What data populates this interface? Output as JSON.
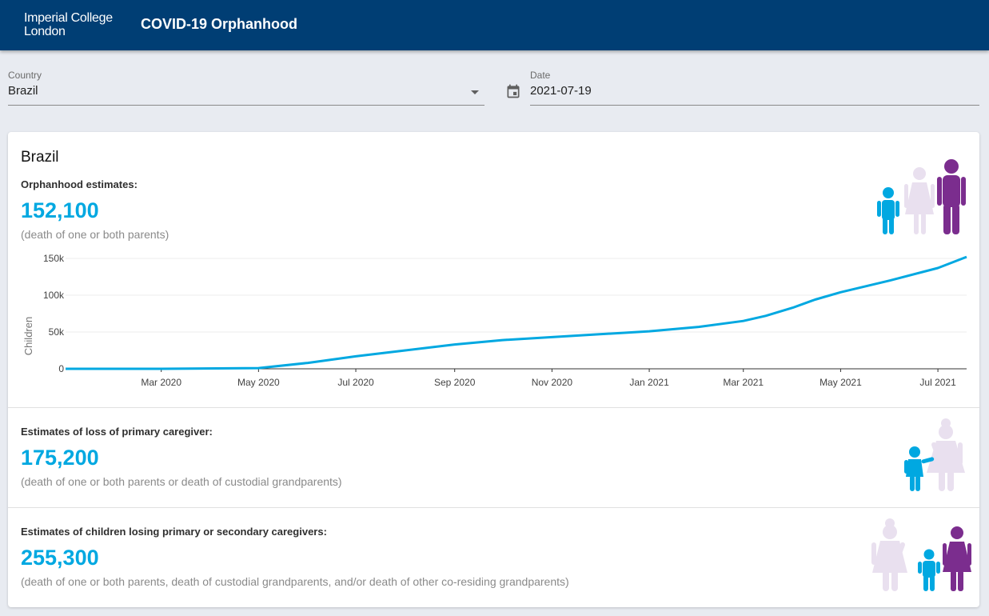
{
  "header": {
    "logo_line1": "Imperial College",
    "logo_line2": "London",
    "title": "COVID-19 Orphanhood"
  },
  "filters": {
    "country_label": "Country",
    "country_value": "Brazil",
    "date_label": "Date",
    "date_value": "2021-07-19"
  },
  "card": {
    "title": "Brazil",
    "orphanhood": {
      "label": "Orphanhood estimates:",
      "value": "152,100",
      "note": "(death of one or both parents)"
    },
    "primary": {
      "label": "Estimates of loss of primary caregiver:",
      "value": "175,200",
      "note": "(death of one or both parents or death of custodial grandparents)"
    },
    "secondary": {
      "label": "Estimates of children losing primary or secondary caregivers:",
      "value": "255,300",
      "note": "(death of one or both parents, death of custodial grandparents, and/or death of other co-residing grandparents)"
    }
  },
  "colors": {
    "accent": "#00a8e1",
    "purple": "#7b2d8e",
    "lavender": "#e9e0ef",
    "header": "#003e74"
  },
  "chart_data": {
    "type": "line",
    "title": "",
    "xlabel": "",
    "ylabel": "Children",
    "ylim": [
      0,
      150000
    ],
    "yticks": [
      0,
      50000,
      100000,
      150000
    ],
    "ytick_labels": [
      "0",
      "50k",
      "100k",
      "150k"
    ],
    "xtick_labels": [
      "Mar 2020",
      "May 2020",
      "Jul 2020",
      "Sep 2020",
      "Nov 2020",
      "Jan 2021",
      "Mar 2021",
      "May 2021",
      "Jul 2021"
    ],
    "grid": true,
    "series": [
      {
        "color": "#00a8e1",
        "x": [
          "2020-01-01",
          "2020-03-01",
          "2020-05-01",
          "2020-06-01",
          "2020-07-01",
          "2020-08-01",
          "2020-09-01",
          "2020-10-01",
          "2020-11-01",
          "2020-12-01",
          "2021-01-01",
          "2021-02-01",
          "2021-03-01",
          "2021-03-15",
          "2021-04-01",
          "2021-04-15",
          "2021-05-01",
          "2021-06-01",
          "2021-07-01",
          "2021-07-19"
        ],
        "values": [
          0,
          0,
          1000,
          8000,
          17000,
          25000,
          33000,
          39000,
          43000,
          47000,
          51000,
          57000,
          65000,
          72000,
          83000,
          94000,
          104000,
          120000,
          137000,
          152100
        ]
      }
    ]
  }
}
